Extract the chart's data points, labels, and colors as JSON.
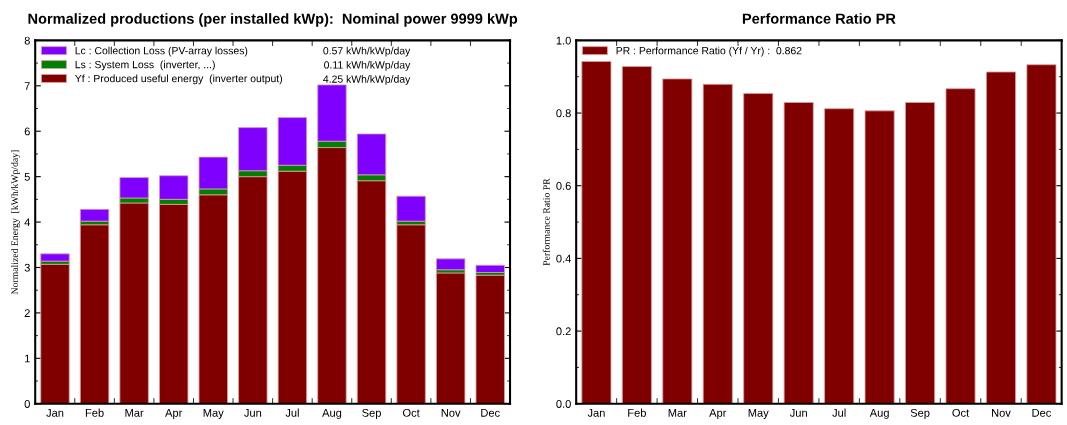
{
  "chart_data": [
    {
      "type": "bar",
      "title": "Normalized productions (per installed kWp):  Nominal power 9999 kWp",
      "ylabel": "Normalized Energy  [kWh/kWp/day]",
      "categories": [
        "Jan",
        "Feb",
        "Mar",
        "Apr",
        "May",
        "Jun",
        "Jul",
        "Aug",
        "Sep",
        "Oct",
        "Nov",
        "Dec"
      ],
      "stacked": true,
      "series": [
        {
          "name": "Yf : Produced useful energy  (inverter output)",
          "color": "#800000",
          "values": [
            3.07,
            3.94,
            4.42,
            4.39,
            4.6,
            5.0,
            5.12,
            5.64,
            4.91,
            3.94,
            2.88,
            2.83
          ]
        },
        {
          "name": "Ls : System Loss  (inverter, ...)",
          "color": "#008000",
          "values": [
            0.07,
            0.08,
            0.11,
            0.11,
            0.13,
            0.13,
            0.13,
            0.14,
            0.13,
            0.08,
            0.07,
            0.06
          ]
        },
        {
          "name": "Lc : Collection Loss (PV-array losses)",
          "color": "#8000ff",
          "values": [
            0.16,
            0.26,
            0.45,
            0.52,
            0.7,
            0.95,
            1.05,
            1.24,
            0.9,
            0.55,
            0.24,
            0.16
          ]
        }
      ],
      "annotations": [
        "4.25 kWh/kWp/day",
        "0.11 kWh/kWp/day",
        "0.57 kWh/kWp/day"
      ],
      "ylim": [
        0,
        8
      ],
      "yticks": [
        0,
        1,
        2,
        3,
        4,
        5,
        6,
        7,
        8
      ],
      "legend": "top left",
      "grid": false
    },
    {
      "type": "bar",
      "title": "Performance Ratio PR",
      "ylabel": "Performance Ratio PR",
      "categories": [
        "Jan",
        "Feb",
        "Mar",
        "Apr",
        "May",
        "Jun",
        "Jul",
        "Aug",
        "Sep",
        "Oct",
        "Nov",
        "Dec"
      ],
      "series": [
        {
          "name": "PR : Performance Ratio (Yf / Yr) :  0.862",
          "color": "#800000",
          "values": [
            0.942,
            0.928,
            0.894,
            0.879,
            0.854,
            0.829,
            0.812,
            0.806,
            0.829,
            0.867,
            0.913,
            0.933
          ]
        }
      ],
      "ylim": [
        0,
        1
      ],
      "yticks": [
        {
          "value": 0,
          "label": "0.0"
        },
        0.2,
        0.4,
        0.6,
        0.8,
        {
          "value": 1,
          "label": "1.0"
        }
      ],
      "legend": "top left",
      "grid": false
    }
  ]
}
